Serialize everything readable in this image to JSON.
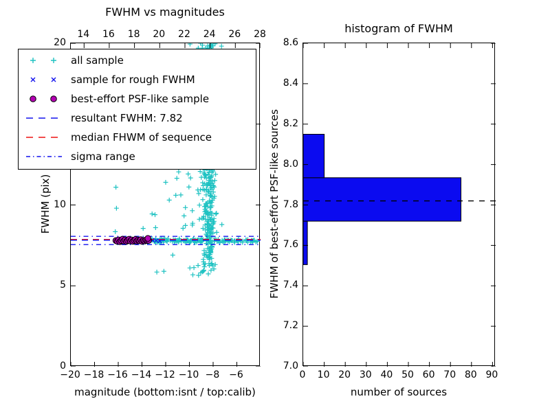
{
  "figure": {
    "background": "#ffffff"
  },
  "colors": {
    "all_sample": "#1ec2c2",
    "rough_sample": "#1111ee",
    "psf_sample_fill": "#b400b4",
    "psf_sample_edge": "#000000",
    "resultant_line": "#1111ee",
    "median_line": "#ee1111",
    "sigma_line": "#1111ee",
    "hist_bar_fill": "#0b0bf0",
    "hist_bar_edge": "#000000",
    "hist_dashed_line": "#000000"
  },
  "legend": {
    "entries": [
      {
        "label": "all sample",
        "swatch": "marker",
        "marker": "+",
        "color": "#1ec2c2"
      },
      {
        "label": "sample for rough FWHM",
        "swatch": "marker",
        "marker": "x",
        "color": "#1111ee"
      },
      {
        "label": "best-effort PSF-like sample",
        "swatch": "marker",
        "marker": "o",
        "color": "#b400b4",
        "edge": "#000000"
      },
      {
        "label": "resultant FWHM: 7.82",
        "swatch": "line",
        "style": "dashed",
        "color": "#1111ee"
      },
      {
        "label": "median FHWM of sequence",
        "swatch": "line",
        "style": "dashed",
        "color": "#ee1111"
      },
      {
        "label": "sigma range",
        "swatch": "line",
        "style": "dashdot",
        "color": "#1111ee"
      }
    ]
  },
  "chart_data": [
    {
      "id": "fwhm_vs_magnitudes",
      "type": "scatter",
      "title": "FWHM vs magnitudes",
      "xlabel": "magnitude (bottom:isnt / top:calib)",
      "ylabel": "FWHM (pix)",
      "xlim": [
        -20,
        -4
      ],
      "ylim": [
        0,
        20
      ],
      "grid": false,
      "x_axis_bottom": {
        "ticks": [
          -20,
          -18,
          -16,
          -14,
          -12,
          -10,
          -8,
          -6
        ],
        "labels": [
          "−20",
          "−18",
          "−16",
          "−14",
          "−12",
          "−10",
          "−8",
          "−6"
        ]
      },
      "x_axis_top": {
        "name": "calib",
        "xlim": [
          12.95,
          28.0
        ],
        "ticks": [
          14,
          16,
          18,
          20,
          22,
          24,
          26,
          28
        ],
        "labels": [
          "14",
          "16",
          "18",
          "20",
          "22",
          "24",
          "26",
          "28"
        ]
      },
      "y_axis": {
        "ticks": [
          0,
          5,
          10,
          15,
          20
        ],
        "labels": [
          "0",
          "5",
          "10",
          "15",
          "20"
        ]
      },
      "series": [
        {
          "name": "all sample",
          "marker": "+",
          "color": "#1ec2c2",
          "seed": 1337,
          "clusters": [
            {
              "kind": "funnel",
              "n": 300,
              "cx": -8.45,
              "y_min": 5.8,
              "y_max": 20.2,
              "y_pow": 0.8,
              "w_base": 0.45,
              "w_slope": 0.075
            },
            {
              "kind": "funnel",
              "n": 150,
              "cx": -8.2,
              "y_min": 6.2,
              "y_max": 19.8,
              "y_pow": 1.0,
              "w_base": 0.25,
              "w_slope": 0.02
            },
            {
              "kind": "band",
              "n": 150,
              "x_min": -13.8,
              "x_max": -4.2,
              "y_center": 7.8,
              "y_spread": 0.17
            },
            {
              "kind": "box",
              "n": 14,
              "x_min": -10.2,
              "x_max": -7.3,
              "y_min": 5.6,
              "y_max": 6.4
            },
            {
              "kind": "box",
              "n": 36,
              "x_min": -11.3,
              "x_max": -7.2,
              "y_min": 8.3,
              "y_max": 13.5
            }
          ],
          "points": [
            [
              -16.2,
              11.1
            ],
            [
              -16.15,
              9.8
            ],
            [
              -16.25,
              8.35
            ],
            [
              -13.15,
              9.45
            ],
            [
              -12.9,
              9.4
            ],
            [
              -12.0,
              11.4
            ],
            [
              -12.85,
              8.6
            ],
            [
              -11.4,
              6.9
            ],
            [
              -12.75,
              5.85
            ],
            [
              -12.15,
              5.9
            ],
            [
              -11.7,
              10.3
            ],
            [
              -11.15,
              10.6
            ],
            [
              -9.95,
              19.95
            ],
            [
              -9.25,
              19.7
            ],
            [
              -10.6,
              14.1
            ],
            [
              -10.95,
              12.9
            ],
            [
              -10.3,
              16.2
            ],
            [
              -10.15,
              13.4
            ],
            [
              -14.15,
              7.8
            ],
            [
              -13.9,
              8.55
            ]
          ]
        },
        {
          "name": "sample for rough FWHM",
          "marker": "x",
          "color": "#1111ee",
          "points": [
            [
              -15.85,
              7.8
            ],
            [
              -15.5,
              7.86
            ],
            [
              -15.2,
              7.76
            ],
            [
              -14.9,
              7.83
            ],
            [
              -14.6,
              7.78
            ],
            [
              -14.35,
              7.85
            ],
            [
              -14.05,
              7.8
            ],
            [
              -13.75,
              7.82
            ],
            [
              -13.45,
              7.78
            ],
            [
              -13.15,
              7.83
            ],
            [
              -12.8,
              7.8
            ],
            [
              -12.5,
              7.77
            ]
          ]
        },
        {
          "name": "best-effort PSF-like sample",
          "marker": "o",
          "color": "#b400b4",
          "edge": "#000000",
          "points": [
            [
              -16.2,
              7.8
            ],
            [
              -16.08,
              7.76
            ],
            [
              -15.97,
              7.84
            ],
            [
              -15.86,
              7.73
            ],
            [
              -15.75,
              7.8
            ],
            [
              -15.64,
              7.88
            ],
            [
              -15.53,
              7.77
            ],
            [
              -15.42,
              7.84
            ],
            [
              -15.31,
              7.75
            ],
            [
              -15.2,
              7.81
            ],
            [
              -15.09,
              7.88
            ],
            [
              -14.98,
              7.77
            ],
            [
              -14.87,
              7.84
            ],
            [
              -14.76,
              7.75
            ],
            [
              -14.65,
              7.81
            ],
            [
              -14.54,
              7.87
            ],
            [
              -14.43,
              7.77
            ],
            [
              -14.32,
              7.83
            ],
            [
              -14.21,
              7.79
            ],
            [
              -14.1,
              7.85
            ],
            [
              -13.99,
              7.75
            ],
            [
              -13.88,
              7.81
            ],
            [
              -13.77,
              7.78
            ],
            [
              -13.66,
              7.83
            ],
            [
              -13.55,
              7.79
            ],
            [
              -13.44,
              7.81
            ],
            [
              -13.5,
              7.93
            ]
          ]
        }
      ],
      "hlines": [
        {
          "name": "sigma range high",
          "y": 8.06,
          "color": "#1111ee",
          "style": "dashdot"
        },
        {
          "name": "sigma range low",
          "y": 7.55,
          "color": "#1111ee",
          "style": "dashdot"
        },
        {
          "name": "median FHWM of sequence",
          "y": 7.87,
          "color": "#ee1111",
          "style": "dashed"
        },
        {
          "name": "resultant FWHM",
          "y": 7.82,
          "color": "#1111ee",
          "style": "dashed"
        }
      ]
    },
    {
      "id": "histogram_of_fwhm",
      "type": "bar",
      "orientation": "horizontal",
      "title": "histogram of FWHM",
      "xlabel": "number of sources",
      "ylabel": "FWHM of best-effort PSF-like sources",
      "xlim": [
        0,
        91.5
      ],
      "ylim": [
        7.0,
        8.6
      ],
      "grid": false,
      "x_axis": {
        "ticks": [
          0,
          10,
          20,
          30,
          40,
          50,
          60,
          70,
          80,
          90
        ],
        "labels": [
          "0",
          "10",
          "20",
          "30",
          "40",
          "50",
          "60",
          "70",
          "80",
          "90"
        ]
      },
      "y_axis": {
        "ticks": [
          7.0,
          7.2,
          7.4,
          7.6,
          7.8,
          8.0,
          8.2,
          8.4,
          8.6
        ],
        "labels": [
          "7.0",
          "7.2",
          "7.4",
          "7.6",
          "7.8",
          "8.0",
          "8.2",
          "8.4",
          "8.6"
        ]
      },
      "bins": [
        {
          "from": 7.505,
          "to": 7.72,
          "count": 2
        },
        {
          "from": 7.72,
          "to": 7.935,
          "count": 75
        },
        {
          "from": 7.935,
          "to": 8.15,
          "count": 10
        }
      ],
      "bar_fill": "#0b0bf0",
      "bar_edge": "#000000",
      "dashed_line": {
        "y": 7.82,
        "color": "#000000",
        "style": "dashed"
      }
    }
  ]
}
